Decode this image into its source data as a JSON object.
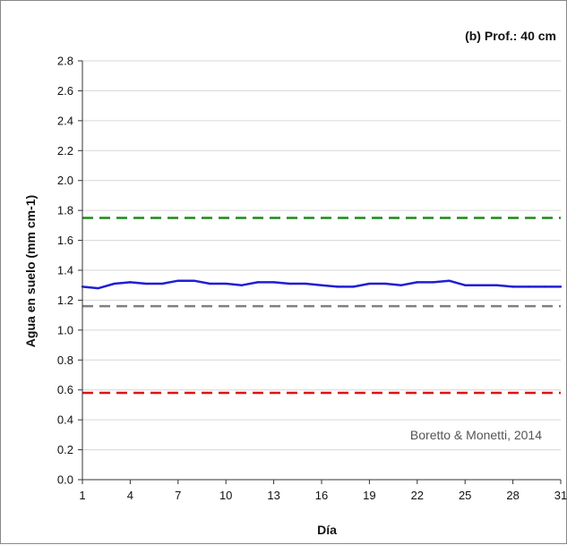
{
  "chart_data": {
    "type": "line",
    "title": "(b) Prof.: 40 cm",
    "xlabel": "Día",
    "ylabel": "Agua en suelo (mm cm-1)",
    "annotation": "Boretto & Monetti, 2014",
    "xlim": [
      1,
      31
    ],
    "ylim": [
      0,
      2.8
    ],
    "x_ticks": [
      "1",
      "4",
      "7",
      "10",
      "13",
      "16",
      "19",
      "22",
      "25",
      "28",
      "31"
    ],
    "y_ticks": [
      "0.0",
      "0.2",
      "0.4",
      "0.6",
      "0.8",
      "1.0",
      "1.2",
      "1.4",
      "1.6",
      "1.8",
      "2.0",
      "2.2",
      "2.4",
      "2.6",
      "2.8"
    ],
    "grid": "horizontal",
    "series": [
      {
        "color": "#1f1fd6",
        "style": "solid",
        "x": [
          1,
          2,
          3,
          4,
          5,
          6,
          7,
          8,
          9,
          10,
          11,
          12,
          13,
          14,
          15,
          16,
          17,
          18,
          19,
          20,
          21,
          22,
          23,
          24,
          25,
          26,
          27,
          28,
          29,
          30,
          31
        ],
        "values": [
          1.29,
          1.28,
          1.31,
          1.32,
          1.31,
          1.31,
          1.33,
          1.33,
          1.31,
          1.31,
          1.3,
          1.32,
          1.32,
          1.31,
          1.31,
          1.3,
          1.29,
          1.29,
          1.31,
          1.31,
          1.3,
          1.32,
          1.32,
          1.33,
          1.3,
          1.3,
          1.3,
          1.29,
          1.29,
          1.29,
          1.29
        ]
      }
    ],
    "reference_lines": [
      {
        "y": 1.75,
        "color": "#1a8a1a",
        "style": "dashed"
      },
      {
        "y": 1.16,
        "color": "#808080",
        "style": "dashed"
      },
      {
        "y": 0.58,
        "color": "#e01010",
        "style": "dashed"
      }
    ]
  }
}
